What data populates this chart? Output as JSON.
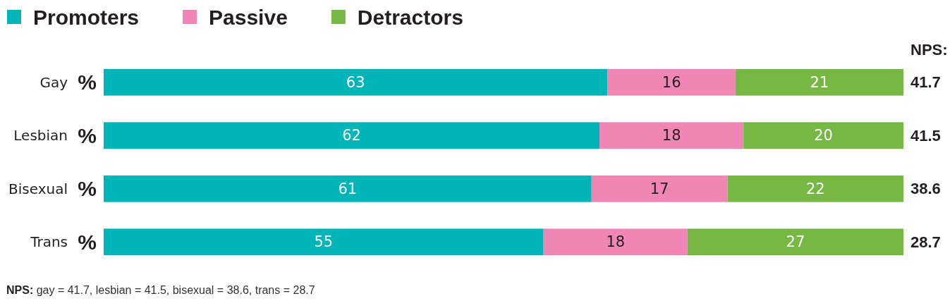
{
  "chart_data": {
    "type": "bar",
    "orientation": "horizontal",
    "stacked": true,
    "categories": [
      "Gay",
      "Lesbian",
      "Bisexual",
      "Trans"
    ],
    "series": [
      {
        "name": "Promoters",
        "color": "#00b5b8",
        "values": [
          63,
          62,
          61,
          55
        ]
      },
      {
        "name": "Passive",
        "color": "#f086b5",
        "values": [
          16,
          18,
          17,
          18
        ]
      },
      {
        "name": "Detractors",
        "color": "#76b843",
        "values": [
          21,
          20,
          22,
          27
        ]
      }
    ],
    "xlim": [
      0,
      100
    ],
    "tick_labels": "y",
    "data_labels": true,
    "legend": "top left",
    "annotations": [
      "%",
      "%",
      "%",
      "%",
      "NPS:",
      "41.7",
      "41.5",
      "38.6",
      "28.7",
      "NPS: gay = 41.7, lesbian = 41.5, bisexual = 38.6, trans = 28.7"
    ]
  }
}
